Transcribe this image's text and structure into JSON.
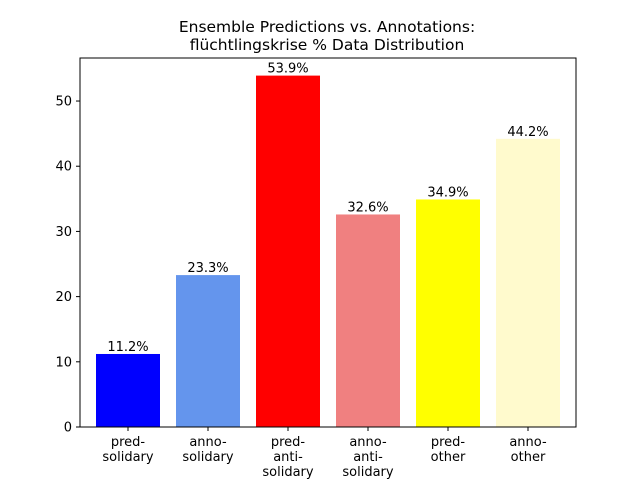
{
  "chart_data": {
    "type": "bar",
    "title": [
      "Ensemble Predictions vs. Annotations:",
      "flüchtlingskrise % Data Distribution"
    ],
    "categories": [
      [
        "pred-",
        "solidary"
      ],
      [
        "anno-",
        "solidary"
      ],
      [
        "pred-",
        "anti-",
        "solidary"
      ],
      [
        "anno-",
        "anti-",
        "solidary"
      ],
      [
        "pred-",
        "other"
      ],
      [
        "anno-",
        "other"
      ]
    ],
    "values": [
      11.2,
      23.3,
      53.9,
      32.6,
      34.9,
      44.2
    ],
    "value_labels": [
      "11.2%",
      "23.3%",
      "53.9%",
      "32.6%",
      "34.9%",
      "44.2%"
    ],
    "colors": [
      "#0000ff",
      "#6495ed",
      "#ff0000",
      "#f08080",
      "#ffff00",
      "#fffacd"
    ],
    "ylim": [
      0,
      56.6
    ],
    "yticks": [
      0,
      10,
      20,
      30,
      40,
      50
    ],
    "xlabel": "",
    "ylabel": "",
    "grid": false,
    "legend": "none"
  }
}
